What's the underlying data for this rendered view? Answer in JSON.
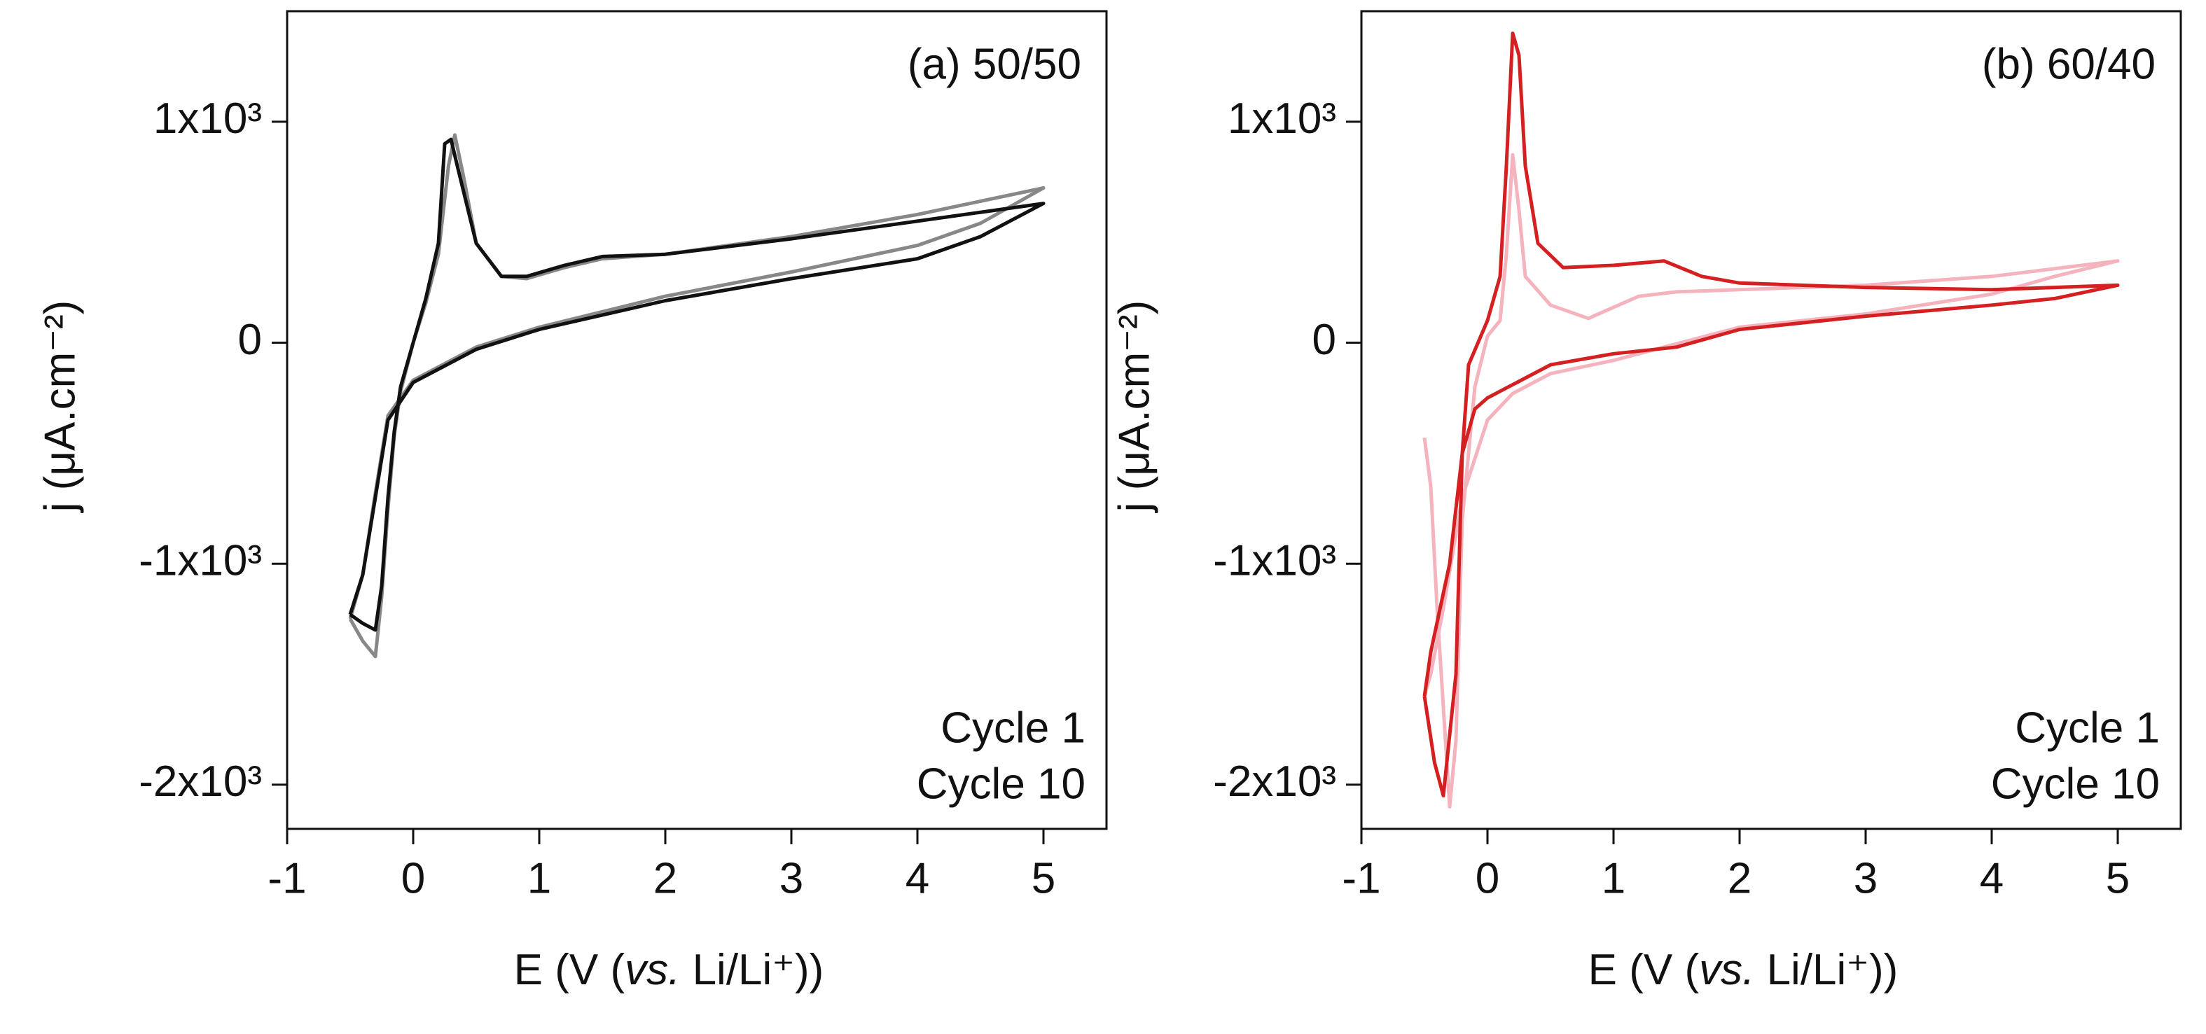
{
  "chart_data": [
    {
      "type": "line",
      "title": "(a) 50/50",
      "title_color": "#000000",
      "xlabel": [
        "E (V (",
        "vs.",
        " Li/Li⁺))"
      ],
      "ylabel": "j (μA.cm⁻²)",
      "xlim": [
        -1,
        5.5
      ],
      "ylim": [
        -2200,
        1500
      ],
      "xticks": [
        -1,
        0,
        1,
        2,
        3,
        4,
        5
      ],
      "yticks": [
        {
          "value": 1000,
          "label": "1x10³"
        },
        0,
        {
          "value": -1000,
          "label": "-1x10³"
        },
        {
          "value": -2000,
          "label": "-2x10³"
        }
      ],
      "legend": "lower right",
      "series": [
        {
          "name": "Cycle 1",
          "color": "#888888",
          "x": [
            -0.5,
            -0.4,
            -0.3,
            -0.25,
            -0.2,
            -0.15,
            -0.1,
            0,
            0.1,
            0.2,
            0.28,
            0.33,
            0.4,
            0.5,
            0.7,
            0.9,
            1.2,
            1.5,
            2,
            3,
            4,
            5,
            4.5,
            4,
            3,
            2,
            1,
            0.5,
            0,
            -0.2,
            -0.3,
            -0.4,
            -0.5
          ],
          "values": [
            -1250,
            -1350,
            -1420,
            -1150,
            -750,
            -420,
            -220,
            0,
            180,
            400,
            800,
            940,
            750,
            450,
            300,
            290,
            340,
            380,
            400,
            480,
            580,
            700,
            540,
            440,
            320,
            210,
            70,
            -20,
            -170,
            -330,
            -680,
            -1050,
            -1250
          ]
        },
        {
          "name": "Cycle 10",
          "color": "#111111",
          "x": [
            -0.5,
            -0.4,
            -0.3,
            -0.25,
            -0.2,
            -0.15,
            -0.1,
            0,
            0.1,
            0.2,
            0.25,
            0.3,
            0.35,
            0.5,
            0.7,
            0.9,
            1.2,
            1.5,
            2,
            3,
            4,
            5,
            4.5,
            4,
            3,
            2,
            1,
            0.5,
            0,
            -0.2,
            -0.3,
            -0.4,
            -0.5
          ],
          "values": [
            -1230,
            -1270,
            -1300,
            -1100,
            -700,
            -400,
            -200,
            0,
            200,
            450,
            900,
            920,
            800,
            450,
            300,
            300,
            350,
            390,
            400,
            470,
            550,
            630,
            480,
            380,
            290,
            190,
            60,
            -30,
            -180,
            -350,
            -700,
            -1050,
            -1230
          ]
        }
      ]
    },
    {
      "type": "line",
      "title": "(b) 60/40",
      "title_color": "#d42020",
      "xlabel": [
        "E (V (",
        "vs.",
        " Li/Li⁺))"
      ],
      "ylabel": "j (μA.cm⁻²)",
      "xlim": [
        -1,
        5.5
      ],
      "ylim": [
        -2200,
        1500
      ],
      "xticks": [
        -1,
        0,
        1,
        2,
        3,
        4,
        5
      ],
      "yticks": [
        {
          "value": 1000,
          "label": "1x10³"
        },
        0,
        {
          "value": -1000,
          "label": "-1x10³"
        },
        {
          "value": -2000,
          "label": "-2x10³"
        }
      ],
      "legend": "lower right",
      "series": [
        {
          "name": "Cycle 1",
          "color": "#f4b3bd",
          "x": [
            -0.5,
            -0.45,
            -0.4,
            -0.3,
            -0.25,
            -0.2,
            -0.1,
            0,
            0.1,
            0.15,
            0.2,
            0.25,
            0.3,
            0.5,
            0.8,
            1.2,
            1.5,
            2,
            3,
            4,
            5,
            4.5,
            4,
            3,
            2,
            1,
            0.5,
            0.2,
            0,
            -0.2,
            -0.35,
            -0.45,
            -0.5
          ],
          "values": [
            -430,
            -650,
            -1200,
            -2100,
            -1800,
            -800,
            -200,
            30,
            100,
            400,
            850,
            600,
            300,
            170,
            110,
            210,
            230,
            240,
            260,
            300,
            370,
            300,
            220,
            130,
            70,
            -80,
            -140,
            -230,
            -350,
            -700,
            -1200,
            -1500,
            -1600
          ]
        },
        {
          "name": "Cycle 10",
          "color": "#d42020",
          "x": [
            -0.5,
            -0.42,
            -0.35,
            -0.25,
            -0.2,
            -0.15,
            0,
            0.1,
            0.15,
            0.2,
            0.25,
            0.3,
            0.4,
            0.6,
            1,
            1.4,
            1.7,
            2,
            3,
            4,
            5,
            4.5,
            4,
            3,
            2,
            1.5,
            1,
            0.5,
            0,
            -0.1,
            -0.2,
            -0.3,
            -0.45,
            -0.5
          ],
          "values": [
            -1600,
            -1900,
            -2050,
            -1500,
            -500,
            -100,
            100,
            300,
            800,
            1400,
            1300,
            800,
            450,
            340,
            350,
            370,
            300,
            270,
            250,
            240,
            260,
            200,
            170,
            120,
            60,
            -20,
            -50,
            -100,
            -250,
            -300,
            -500,
            -1000,
            -1400,
            -1600
          ]
        }
      ]
    }
  ]
}
